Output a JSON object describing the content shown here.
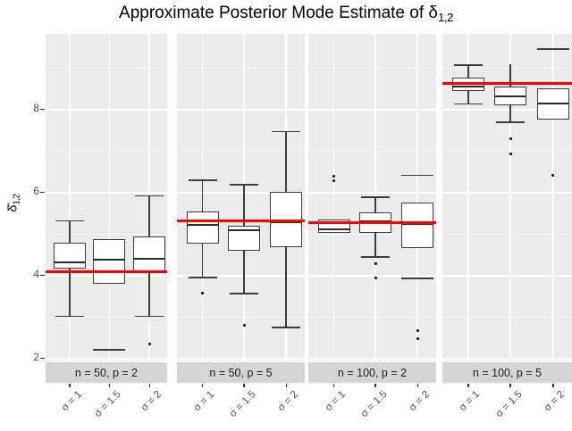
{
  "chart_data": {
    "type": "boxplot",
    "title_main": "Approximate Posterior Mode Estimate of δ",
    "title_sub": "1,2",
    "ylabel_main": "δ̂",
    "ylabel_sub": "1,2",
    "y_ticks": [
      2,
      4,
      6,
      8
    ],
    "y_minor_gridlines": [
      3,
      5,
      7,
      9
    ],
    "y_range": [
      1.94,
      9.81
    ],
    "x_categories": [
      "σ = 1",
      "σ = 1.5",
      "σ = 2"
    ],
    "panels": [
      {
        "label": "n = 50, p = 2",
        "red_line": 4.08,
        "boxes": [
          {
            "category": "σ = 1",
            "whisker_high": 5.3,
            "whisker_high_cap": true,
            "q3": 4.77,
            "median": 4.3,
            "q1": 4.15,
            "whisker_low": 3.0,
            "whisker_low_cap": true,
            "detached_lines": [],
            "outliers": []
          },
          {
            "category": "σ = 1.5",
            "whisker_high": null,
            "whisker_high_cap": false,
            "q3": 4.86,
            "median": 4.37,
            "q1": 3.78,
            "whisker_low": null,
            "whisker_low_cap": false,
            "detached_lines": [
              2.2
            ],
            "outliers": []
          },
          {
            "category": "σ = 2",
            "whisker_high": 5.9,
            "whisker_high_cap": true,
            "q3": 4.92,
            "median": 4.38,
            "q1": 4.05,
            "whisker_low": 3.0,
            "whisker_low_cap": true,
            "detached_lines": [],
            "outliers": [
              2.33
            ]
          }
        ]
      },
      {
        "label": "n = 50, p = 5",
        "red_line": 5.3,
        "boxes": [
          {
            "category": "σ = 1",
            "whisker_high": 6.28,
            "whisker_high_cap": true,
            "q3": 5.53,
            "median": 5.2,
            "q1": 4.75,
            "whisker_low": 3.94,
            "whisker_low_cap": true,
            "detached_lines": [],
            "outliers": [
              3.55
            ]
          },
          {
            "category": "σ = 1.5",
            "whisker_high": 6.17,
            "whisker_high_cap": true,
            "q3": 5.18,
            "median": 5.07,
            "q1": 4.58,
            "whisker_low": 3.55,
            "whisker_low_cap": true,
            "detached_lines": [],
            "outliers": [
              2.78
            ]
          },
          {
            "category": "σ = 2",
            "whisker_high": 7.45,
            "whisker_high_cap": true,
            "q3": 6.0,
            "median": 5.28,
            "q1": 4.67,
            "whisker_low": 2.73,
            "whisker_low_cap": true,
            "detached_lines": [],
            "outliers": []
          }
        ]
      },
      {
        "label": "n = 100, p = 2",
        "red_line": 5.26,
        "boxes": [
          {
            "category": "σ = 1",
            "whisker_high": null,
            "whisker_high_cap": false,
            "q3": 5.33,
            "median": 5.1,
            "q1": 5.02,
            "whisker_low": null,
            "whisker_low_cap": false,
            "detached_lines": [],
            "outliers": [
              6.38,
              6.27
            ]
          },
          {
            "category": "σ = 1.5",
            "whisker_high": 5.87,
            "whisker_high_cap": true,
            "q3": 5.5,
            "median": 5.28,
            "q1": 5.02,
            "whisker_low": 4.43,
            "whisker_low_cap": true,
            "detached_lines": [],
            "outliers": [
              4.27,
              3.93
            ]
          },
          {
            "category": "σ = 2",
            "whisker_high": null,
            "whisker_high_cap": false,
            "q3": 5.74,
            "median": 5.23,
            "q1": 4.65,
            "whisker_low": null,
            "whisker_low_cap": false,
            "detached_lines": [
              6.4,
              3.92
            ],
            "outliers": [
              2.65,
              2.47
            ]
          }
        ]
      },
      {
        "label": "n = 100, p = 5",
        "red_line": 8.62,
        "boxes": [
          {
            "category": "σ = 1",
            "whisker_high": 9.05,
            "whisker_high_cap": true,
            "q3": 8.75,
            "median": 8.53,
            "q1": 8.44,
            "whisker_low": 8.12,
            "whisker_low_cap": true,
            "detached_lines": [],
            "outliers": []
          },
          {
            "category": "σ = 1.5",
            "whisker_high": 9.07,
            "whisker_high_cap": false,
            "q3": 8.54,
            "median": 8.3,
            "q1": 8.09,
            "whisker_low": 7.68,
            "whisker_low_cap": true,
            "detached_lines": [],
            "outliers": [
              7.29,
              6.92
            ]
          },
          {
            "category": "σ = 2",
            "whisker_high": null,
            "whisker_high_cap": false,
            "q3": 8.49,
            "median": 8.13,
            "q1": 7.74,
            "whisker_low": null,
            "whisker_low_cap": false,
            "detached_lines": [
              9.44
            ],
            "outliers": [
              6.39
            ]
          }
        ]
      }
    ],
    "colors": {
      "panel_bg": "#EBEBEB",
      "strip_bg": "#D5D5D5",
      "grid_major": "#FFFFFF",
      "grid_minor": "rgba(255,255,255,0.55)",
      "box_border": "#3C3C3C",
      "median": "#2B2B2B",
      "reference_line": "#FF0000",
      "outlier": "#000000",
      "axis_text": "#4D4D4D",
      "strip_text": "#1A1A1A"
    }
  }
}
